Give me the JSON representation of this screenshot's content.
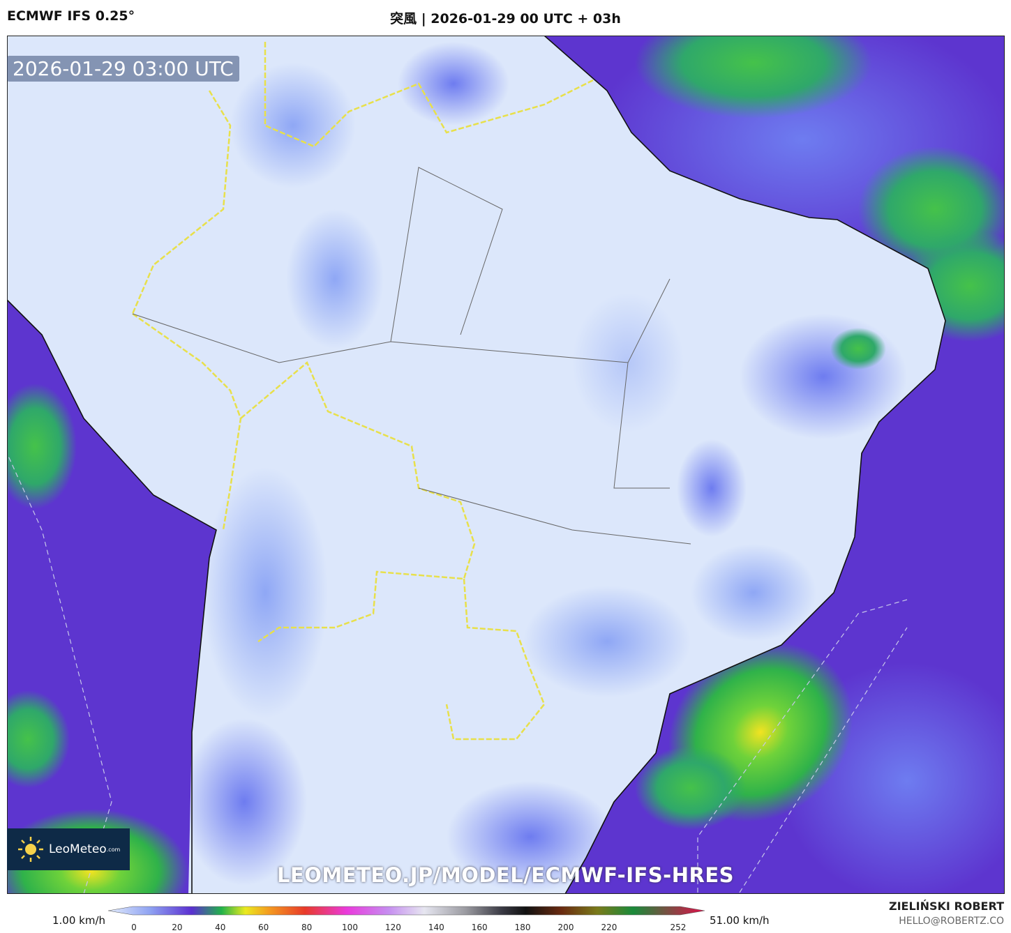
{
  "header": {
    "left": "ECMWF IFS 0.25°",
    "center": "突風 | 2026-01-29 00 UTC + 03h"
  },
  "map": {
    "timestamp": "2026-01-29 03:00 UTC",
    "watermark": "LEOMETEO.JP/MODEL/ECMWF-IFS-HRES"
  },
  "logo": {
    "name": "LeoMeteo",
    "suffix": ".com"
  },
  "colorbar": {
    "min_label": "1.00 km/h",
    "max_label": "51.00 km/h",
    "ticks": [
      0,
      20,
      40,
      60,
      80,
      100,
      120,
      140,
      160,
      180,
      200,
      220,
      252
    ]
  },
  "credits": {
    "name": "ZIELIŃSKI ROBERT",
    "email": "HELLO@ROBERTZ.CO"
  }
}
